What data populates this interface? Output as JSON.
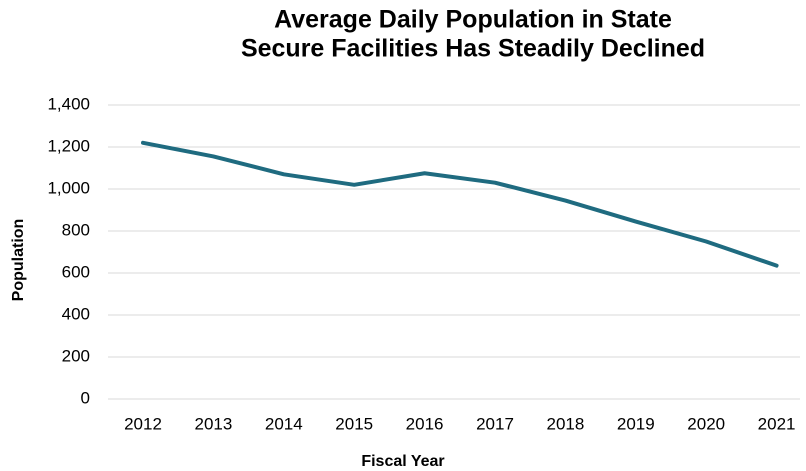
{
  "chart_data": {
    "type": "line",
    "title": [
      "Average Daily Population in State",
      "Secure Facilities Has Steadily Declined"
    ],
    "x_label": "Fiscal Year",
    "y_label": "Population",
    "categories": [
      "2012",
      "2013",
      "2014",
      "2015",
      "2016",
      "2017",
      "2018",
      "2019",
      "2020",
      "2021"
    ],
    "series": [
      {
        "name": "Population",
        "color": "#1f6b80",
        "values": [
          1220,
          1155,
          1070,
          1020,
          1075,
          1030,
          945,
          845,
          750,
          635
        ]
      }
    ],
    "ylim": [
      0,
      1400
    ],
    "yticks": [
      0,
      200,
      400,
      600,
      800,
      {
        "value": 1000,
        "label": "1,000"
      },
      {
        "value": 1200,
        "label": "1,200"
      },
      {
        "value": 1400,
        "label": "1,400"
      }
    ],
    "grid": true
  }
}
